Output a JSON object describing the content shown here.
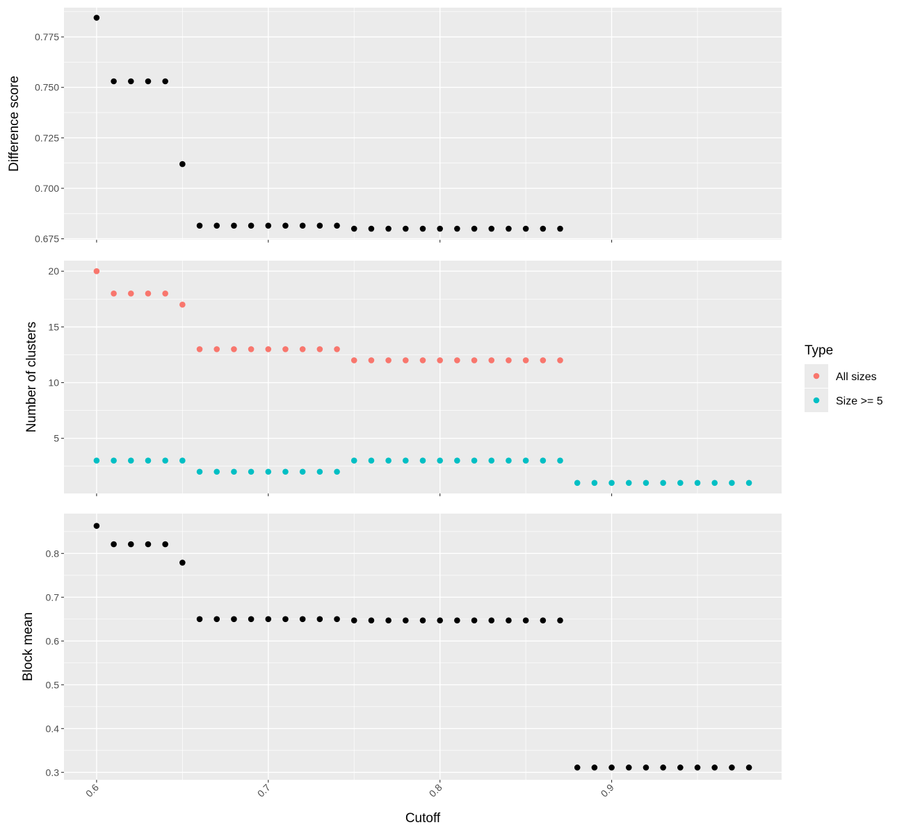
{
  "chart_data": [
    {
      "type": "scatter",
      "ylabel": "Difference score",
      "xlim": [
        0.581,
        0.999
      ],
      "ylim": [
        0.6745,
        0.7895
      ],
      "yticks": [
        0.675,
        0.7,
        0.725,
        0.75,
        0.775
      ],
      "ytick_labels": [
        "0.675",
        "0.700",
        "0.725",
        "0.750",
        "0.775"
      ],
      "series": [
        {
          "color": "#000000",
          "x": [
            0.6,
            0.61,
            0.62,
            0.63,
            0.64,
            0.65,
            0.66,
            0.67,
            0.68,
            0.69,
            0.7,
            0.71,
            0.72,
            0.73,
            0.74,
            0.75,
            0.76,
            0.77,
            0.78,
            0.79,
            0.8,
            0.81,
            0.82,
            0.83,
            0.84,
            0.85,
            0.86,
            0.87
          ],
          "y": [
            0.7845,
            0.753,
            0.753,
            0.753,
            0.753,
            0.712,
            0.6815,
            0.6815,
            0.6815,
            0.6815,
            0.6815,
            0.6815,
            0.6815,
            0.6815,
            0.6815,
            0.68,
            0.68,
            0.68,
            0.68,
            0.68,
            0.68,
            0.68,
            0.68,
            0.68,
            0.68,
            0.68,
            0.68,
            0.68
          ]
        }
      ]
    },
    {
      "type": "scatter",
      "ylabel": "Number of clusters",
      "xlim": [
        0.581,
        0.999
      ],
      "ylim": [
        0.05,
        20.95
      ],
      "yticks": [
        5,
        10,
        15,
        20
      ],
      "ytick_labels": [
        "5",
        "10",
        "15",
        "20"
      ],
      "legend": {
        "title": "Type",
        "position": "right"
      },
      "series": [
        {
          "name": "All sizes",
          "color": "#F8766D",
          "x": [
            0.6,
            0.61,
            0.62,
            0.63,
            0.64,
            0.65,
            0.66,
            0.67,
            0.68,
            0.69,
            0.7,
            0.71,
            0.72,
            0.73,
            0.74,
            0.75,
            0.76,
            0.77,
            0.78,
            0.79,
            0.8,
            0.81,
            0.82,
            0.83,
            0.84,
            0.85,
            0.86,
            0.87
          ],
          "y": [
            20,
            18,
            18,
            18,
            18,
            17,
            13,
            13,
            13,
            13,
            13,
            13,
            13,
            13,
            13,
            12,
            12,
            12,
            12,
            12,
            12,
            12,
            12,
            12,
            12,
            12,
            12,
            12
          ]
        },
        {
          "name": "Size >= 5",
          "color": "#00BFC4",
          "x": [
            0.6,
            0.61,
            0.62,
            0.63,
            0.64,
            0.65,
            0.66,
            0.67,
            0.68,
            0.69,
            0.7,
            0.71,
            0.72,
            0.73,
            0.74,
            0.75,
            0.76,
            0.77,
            0.78,
            0.79,
            0.8,
            0.81,
            0.82,
            0.83,
            0.84,
            0.85,
            0.86,
            0.87,
            0.88,
            0.89,
            0.9,
            0.91,
            0.92,
            0.93,
            0.94,
            0.95,
            0.96,
            0.97,
            0.98
          ],
          "y": [
            3,
            3,
            3,
            3,
            3,
            3,
            2,
            2,
            2,
            2,
            2,
            2,
            2,
            2,
            2,
            3,
            3,
            3,
            3,
            3,
            3,
            3,
            3,
            3,
            3,
            3,
            3,
            3,
            1,
            1,
            1,
            1,
            1,
            1,
            1,
            1,
            1,
            1,
            1
          ]
        }
      ]
    },
    {
      "type": "scatter",
      "ylabel": "Block mean",
      "xlabel": "Cutoff",
      "xlim": [
        0.581,
        0.999
      ],
      "ylim": [
        0.283,
        0.891
      ],
      "xticks": [
        0.6,
        0.7,
        0.8,
        0.9
      ],
      "xtick_labels": [
        "0.6",
        "0.7",
        "0.8",
        "0.9"
      ],
      "yticks": [
        0.3,
        0.4,
        0.5,
        0.6,
        0.7,
        0.8
      ],
      "ytick_labels": [
        "0.3",
        "0.4",
        "0.5",
        "0.6",
        "0.7",
        "0.8"
      ],
      "series": [
        {
          "color": "#000000",
          "x": [
            0.6,
            0.61,
            0.62,
            0.63,
            0.64,
            0.65,
            0.66,
            0.67,
            0.68,
            0.69,
            0.7,
            0.71,
            0.72,
            0.73,
            0.74,
            0.75,
            0.76,
            0.77,
            0.78,
            0.79,
            0.8,
            0.81,
            0.82,
            0.83,
            0.84,
            0.85,
            0.86,
            0.87,
            0.88,
            0.89,
            0.9,
            0.91,
            0.92,
            0.93,
            0.94,
            0.95,
            0.96,
            0.97,
            0.98
          ],
          "y": [
            0.863,
            0.821,
            0.821,
            0.821,
            0.821,
            0.779,
            0.65,
            0.65,
            0.65,
            0.65,
            0.65,
            0.65,
            0.65,
            0.65,
            0.65,
            0.647,
            0.647,
            0.647,
            0.647,
            0.647,
            0.647,
            0.647,
            0.647,
            0.647,
            0.647,
            0.647,
            0.647,
            0.647,
            0.311,
            0.311,
            0.311,
            0.311,
            0.311,
            0.311,
            0.311,
            0.311,
            0.311,
            0.311,
            0.311
          ]
        }
      ]
    }
  ]
}
